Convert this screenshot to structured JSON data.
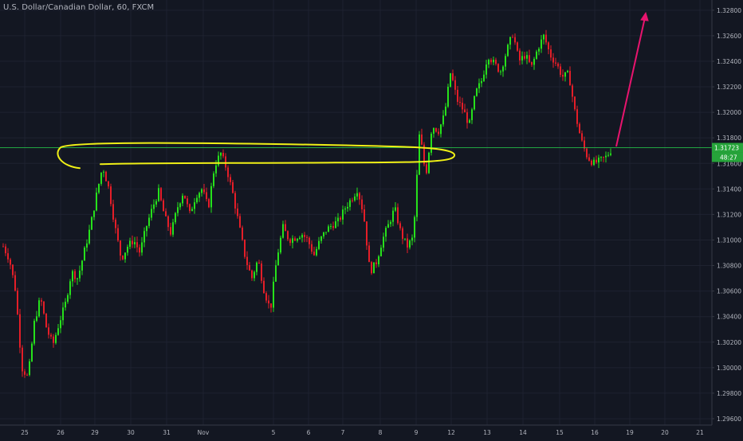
{
  "header": {
    "title": "U.S. Dollar/Canadian Dollar, 60, FXCM"
  },
  "colors": {
    "background": "#131722",
    "grid": "#1e2230",
    "bull": "#26e11b",
    "bear": "#e41e28",
    "annotation_highlight": "#f0f016",
    "annotation_arrow": "#e8146e",
    "price_line": "#26c94a",
    "axis_text": "#b2b5be"
  },
  "chart_data": {
    "type": "candlestick",
    "title": "U.S. Dollar/Canadian Dollar, 60, FXCM",
    "interval": "60",
    "x_tick_labels": [
      "25",
      "26",
      "29",
      "30",
      "31",
      "Nov",
      "5",
      "6",
      "7",
      "8",
      "9",
      "12",
      "13",
      "14",
      "15",
      "16",
      "19",
      "20",
      "21"
    ],
    "y_tick_labels": [
      "1.32800",
      "1.32600",
      "1.32400",
      "1.32200",
      "1.32000",
      "1.31800",
      "1.31600",
      "1.31400",
      "1.31200",
      "1.31000",
      "1.30800",
      "1.30600",
      "1.30400",
      "1.30200",
      "1.30000",
      "1.29800",
      "1.29600"
    ],
    "ylim": [
      1.2955,
      1.3288
    ],
    "grid": true,
    "current_price": "1.31723",
    "countdown": "48:27",
    "price_path": [
      [
        0,
        1.3095
      ],
      [
        1,
        1.3085
      ],
      [
        2,
        1.306
      ],
      [
        3,
        1.3
      ],
      [
        4,
        1.2992
      ],
      [
        5,
        1.3035
      ],
      [
        6,
        1.3055
      ],
      [
        7,
        1.303
      ],
      [
        8,
        1.3018
      ],
      [
        9,
        1.3035
      ],
      [
        10,
        1.305
      ],
      [
        11,
        1.3075
      ],
      [
        12,
        1.307
      ],
      [
        13,
        1.309
      ],
      [
        14,
        1.311
      ],
      [
        15,
        1.3135
      ],
      [
        16,
        1.3158
      ],
      [
        17,
        1.314
      ],
      [
        18,
        1.311
      ],
      [
        19,
        1.3085
      ],
      [
        20,
        1.3095
      ],
      [
        21,
        1.31
      ],
      [
        22,
        1.309
      ],
      [
        23,
        1.311
      ],
      [
        24,
        1.3125
      ],
      [
        25,
        1.3138
      ],
      [
        26,
        1.3118
      ],
      [
        27,
        1.3105
      ],
      [
        28,
        1.3125
      ],
      [
        29,
        1.3138
      ],
      [
        30,
        1.312
      ],
      [
        31,
        1.3135
      ],
      [
        32,
        1.314
      ],
      [
        33,
        1.3125
      ],
      [
        34,
        1.3158
      ],
      [
        35,
        1.3168
      ],
      [
        36,
        1.3155
      ],
      [
        37,
        1.3135
      ],
      [
        38,
        1.311
      ],
      [
        39,
        1.3085
      ],
      [
        40,
        1.307
      ],
      [
        41,
        1.3085
      ],
      [
        42,
        1.306
      ],
      [
        43,
        1.3045
      ],
      [
        44,
        1.3085
      ],
      [
        45,
        1.311
      ],
      [
        46,
        1.31
      ],
      [
        47,
        1.3102
      ],
      [
        48,
        1.3105
      ],
      [
        49,
        1.31
      ],
      [
        50,
        1.3088
      ],
      [
        51,
        1.31
      ],
      [
        52,
        1.3108
      ],
      [
        53,
        1.3112
      ],
      [
        54,
        1.3115
      ],
      [
        55,
        1.3125
      ],
      [
        56,
        1.3132
      ],
      [
        57,
        1.314
      ],
      [
        58,
        1.312
      ],
      [
        59,
        1.3075
      ],
      [
        60,
        1.3082
      ],
      [
        61,
        1.31
      ],
      [
        62,
        1.3112
      ],
      [
        63,
        1.3125
      ],
      [
        64,
        1.3105
      ],
      [
        65,
        1.3095
      ],
      [
        66,
        1.3102
      ],
      [
        67,
        1.3185
      ],
      [
        68,
        1.315
      ],
      [
        69,
        1.319
      ],
      [
        70,
        1.3185
      ],
      [
        71,
        1.3198
      ],
      [
        72,
        1.3232
      ],
      [
        73,
        1.321
      ],
      [
        74,
        1.3202
      ],
      [
        75,
        1.319
      ],
      [
        76,
        1.3215
      ],
      [
        77,
        1.3225
      ],
      [
        78,
        1.3245
      ],
      [
        79,
        1.3238
      ],
      [
        80,
        1.3232
      ],
      [
        81,
        1.3248
      ],
      [
        82,
        1.3262
      ],
      [
        83,
        1.324
      ],
      [
        84,
        1.3245
      ],
      [
        85,
        1.3235
      ],
      [
        86,
        1.325
      ],
      [
        87,
        1.326
      ],
      [
        88,
        1.3245
      ],
      [
        89,
        1.3238
      ],
      [
        90,
        1.3228
      ],
      [
        91,
        1.323
      ],
      [
        92,
        1.32
      ],
      [
        93,
        1.3178
      ],
      [
        94,
        1.3165
      ],
      [
        95,
        1.316
      ],
      [
        96,
        1.3162
      ],
      [
        97,
        1.3165
      ],
      [
        98,
        1.3172
      ]
    ],
    "annotations": [
      {
        "type": "highlight_outline",
        "color": "yellow",
        "price": 1.317
      },
      {
        "type": "arrow",
        "color": "magenta",
        "direction": "up"
      }
    ]
  }
}
